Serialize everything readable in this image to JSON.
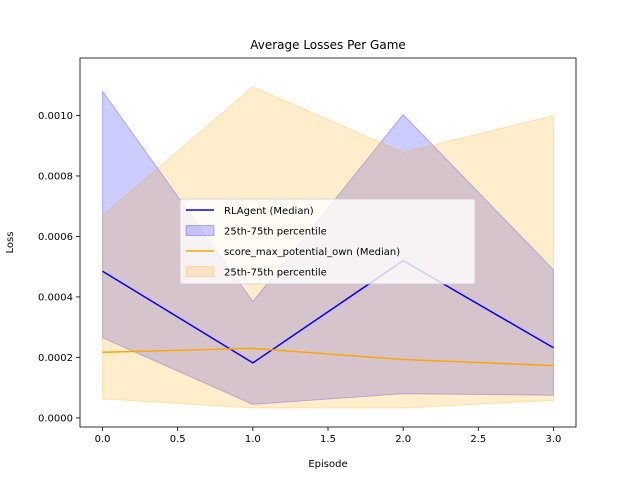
{
  "chart_data": {
    "type": "line",
    "title": "Average Losses Per Game",
    "xlabel": "Episode",
    "ylabel": "Loss",
    "xlim": [
      -0.15,
      3.15
    ],
    "ylim": [
      -3e-05,
      0.00119
    ],
    "x": [
      0,
      1,
      2,
      3
    ],
    "xticks": [
      0,
      0.5,
      1,
      1.5,
      2,
      2.5,
      3
    ],
    "xtick_labels": [
      "0.0",
      "0.5",
      "1.0",
      "1.5",
      "2.0",
      "2.5",
      "3.0"
    ],
    "yticks": [
      0,
      0.0002,
      0.0004,
      0.0006,
      0.0008,
      0.001
    ],
    "ytick_labels": [
      "0.0000",
      "0.0002",
      "0.0004",
      "0.0006",
      "0.0008",
      "0.0010"
    ],
    "grid": false,
    "legend_position": "center",
    "series": [
      {
        "name": "RLAgent (Median)",
        "band_name": "25th-75th percentile",
        "color": "#0000ff",
        "band_color": "#0000ff",
        "band_opacity": 0.2,
        "median": [
          0.000485,
          0.000182,
          0.00052,
          0.000232
        ],
        "p25": [
          0.000265,
          4.5e-05,
          8e-05,
          7.5e-05
        ],
        "p75": [
          0.00108,
          0.000385,
          0.001003,
          0.00049
        ]
      },
      {
        "name": "score_max_potential_own (Median)",
        "band_name": "25th-75th percentile",
        "color": "#ffa500",
        "band_color": "#ffa500",
        "band_opacity": 0.2,
        "median": [
          0.000217,
          0.00023,
          0.000193,
          0.000173
        ],
        "p25": [
          6.3e-05,
          3.3e-05,
          3.3e-05,
          5.8e-05
        ],
        "p75": [
          0.00067,
          0.001095,
          0.000878,
          0.001
        ]
      }
    ]
  }
}
